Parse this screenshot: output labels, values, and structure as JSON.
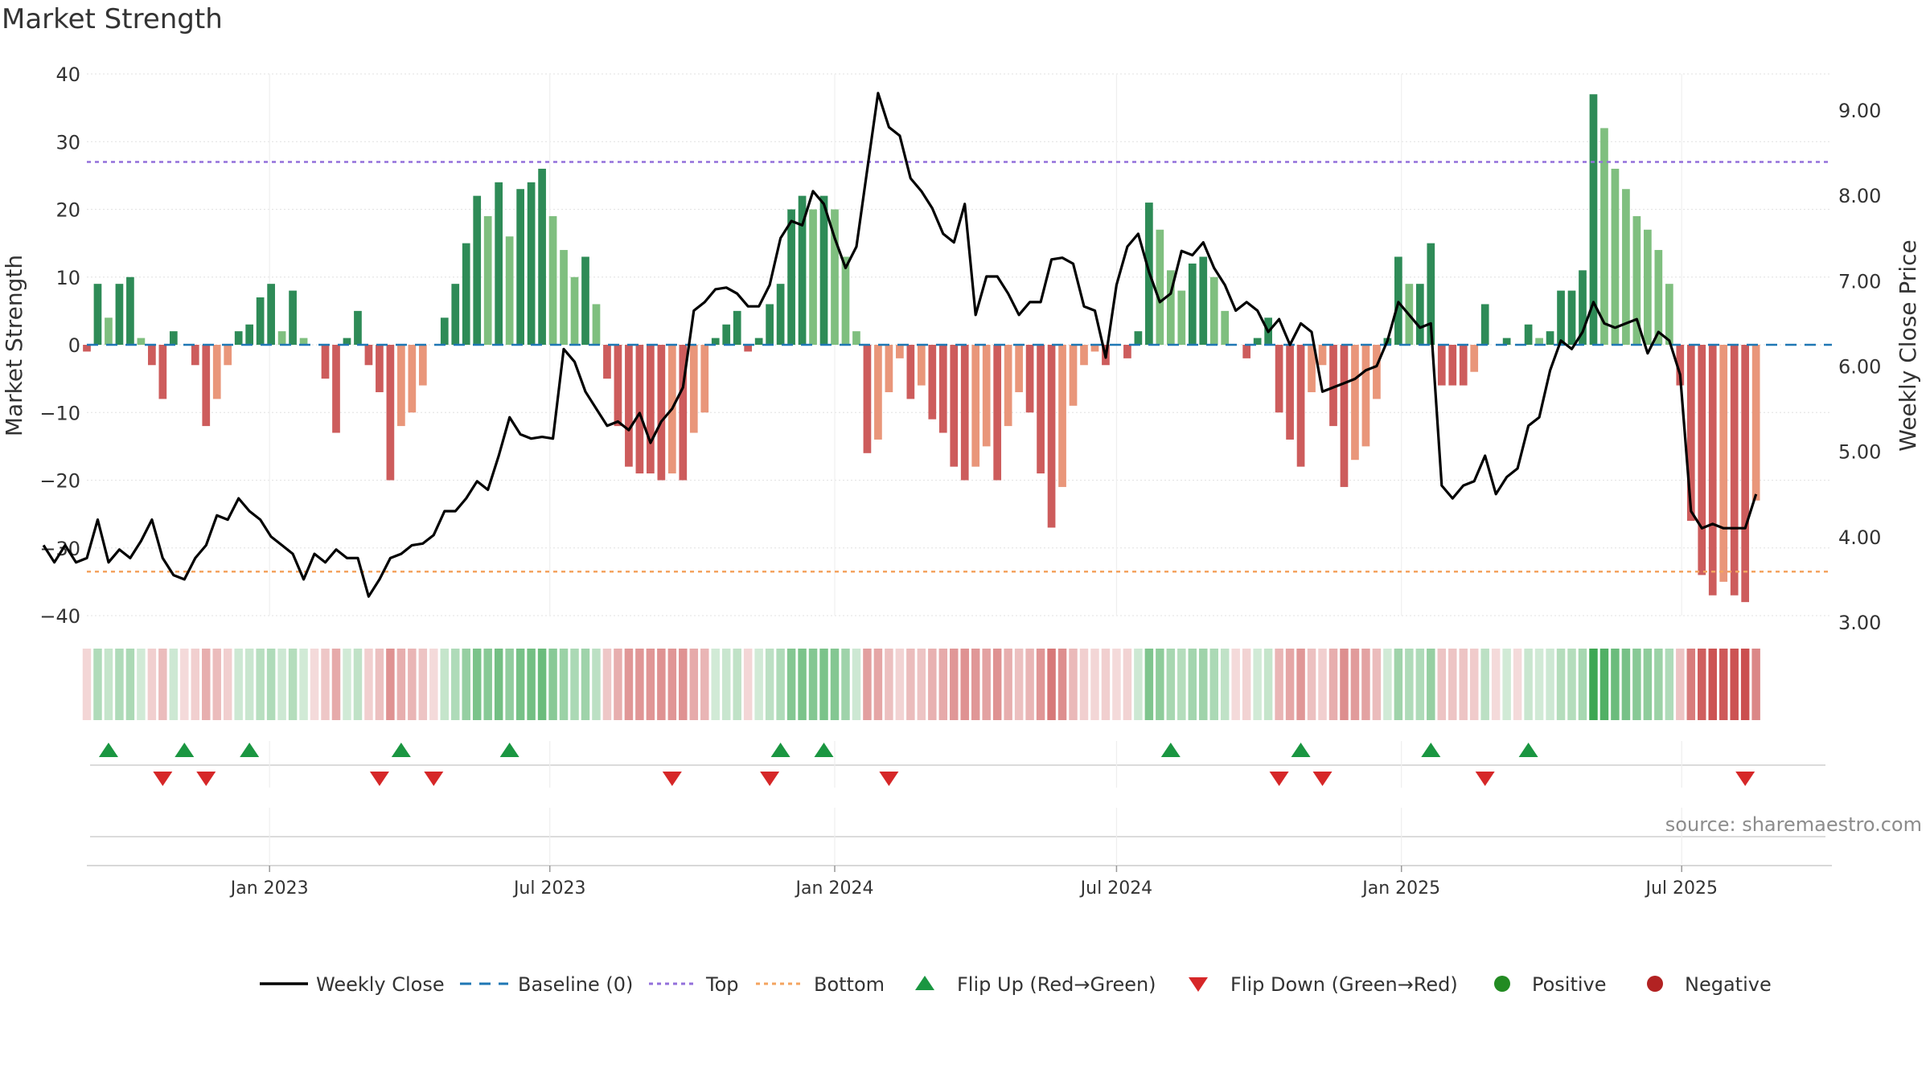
{
  "title": "Market Strength",
  "source": "source: sharemaestro.com",
  "colors": {
    "pos_dark": "#2e8b57",
    "pos_light": "#7fbf7f",
    "neg_dark": "#cd5c5c",
    "neg_light": "#e9967a",
    "flip_up": "#1a9641",
    "flip_down": "#d62728",
    "top_line": "#9370db",
    "bottom_line": "#f4a460",
    "baseline": "#1f77b4",
    "close": "#000000",
    "positive_dot": "#228b22",
    "negative_dot": "#b22222"
  },
  "chart_data": {
    "type": "bar",
    "title": "Market Strength",
    "ylabel": "Market Strength",
    "y2label": "Weekly Close Price",
    "ylim": [
      -40,
      40
    ],
    "y2lim": [
      3.0,
      9.5
    ],
    "yticks": [
      "40",
      "30",
      "20",
      "10",
      "0",
      "−10",
      "−20",
      "−30",
      "−40"
    ],
    "y2ticks": [
      "9.00",
      "8.00",
      "7.00",
      "6.00",
      "5.00",
      "4.00",
      "3.00"
    ],
    "x_start": "2022-09-05",
    "x_end": "2025-10-06",
    "x_ticks": [
      {
        "date": "2023-01-01",
        "label": "Jan 2023"
      },
      {
        "date": "2023-07-01",
        "label": "Jul 2023"
      },
      {
        "date": "2024-01-01",
        "label": "Jan 2024"
      },
      {
        "date": "2024-07-01",
        "label": "Jul 2024"
      },
      {
        "date": "2025-01-01",
        "label": "Jan 2025"
      },
      {
        "date": "2025-07-01",
        "label": "Jul 2025"
      }
    ],
    "top_level": 27,
    "bottom_level": -33.5,
    "strength": [
      -1,
      9,
      4,
      9,
      10,
      1,
      -3,
      -8,
      2,
      0,
      -3,
      -12,
      -8,
      -3,
      2,
      3,
      7,
      9,
      2,
      8,
      1,
      0,
      -5,
      -13,
      1,
      5,
      -3,
      -7,
      -20,
      -12,
      -10,
      -6,
      0,
      4,
      9,
      15,
      22,
      19,
      24,
      16,
      23,
      24,
      26,
      19,
      14,
      10,
      13,
      6,
      -5,
      -12,
      -18,
      -19,
      -19,
      -20,
      -19,
      -20,
      -13,
      -10,
      1,
      3,
      5,
      -1,
      1,
      6,
      9,
      20,
      22,
      20,
      22,
      20,
      13,
      2,
      -16,
      -14,
      -7,
      -2,
      -8,
      -6,
      -11,
      -13,
      -18,
      -20,
      -18,
      -15,
      -20,
      -12,
      -7,
      -10,
      -19,
      -27,
      -21,
      -9,
      -3,
      -1,
      -3,
      0,
      -2,
      2,
      21,
      17,
      11,
      8,
      12,
      13,
      10,
      5,
      0,
      -2,
      1,
      4,
      -10,
      -14,
      -18,
      -7,
      -3,
      -12,
      -21,
      -17,
      -15,
      -8,
      1,
      13,
      9,
      9,
      15,
      -6,
      -6,
      -6,
      -4,
      6,
      0,
      1,
      0,
      3,
      1,
      2,
      8,
      8,
      11,
      37,
      32,
      26,
      23,
      19,
      17,
      14,
      9,
      -6,
      -26,
      -34,
      -37,
      -35,
      -37,
      -38,
      -23
    ],
    "weekly_close": [
      3.9,
      3.7,
      3.9,
      3.7,
      3.75,
      4.2,
      3.7,
      3.85,
      3.75,
      3.95,
      4.2,
      3.75,
      3.55,
      3.5,
      3.75,
      3.9,
      4.25,
      4.2,
      4.45,
      4.3,
      4.2,
      4.0,
      3.9,
      3.8,
      3.5,
      3.8,
      3.7,
      3.85,
      3.75,
      3.75,
      3.3,
      3.5,
      3.75,
      3.8,
      3.9,
      3.92,
      4.02,
      4.3,
      4.3,
      4.45,
      4.65,
      4.55,
      4.95,
      5.4,
      5.2,
      5.15,
      5.17,
      5.15,
      6.2,
      6.05,
      5.7,
      5.5,
      5.3,
      5.35,
      5.25,
      5.45,
      5.1,
      5.35,
      5.5,
      5.75,
      6.65,
      6.75,
      6.9,
      6.92,
      6.85,
      6.7,
      6.7,
      6.95,
      7.5,
      7.7,
      7.65,
      8.05,
      7.9,
      7.5,
      7.15,
      7.4,
      8.3,
      9.2,
      8.8,
      8.7,
      8.2,
      8.05,
      7.85,
      7.55,
      7.45,
      7.9,
      6.6,
      7.05,
      7.05,
      6.85,
      6.6,
      6.75,
      6.75,
      7.25,
      7.27,
      7.2,
      6.7,
      6.65,
      6.1,
      6.95,
      7.4,
      7.55,
      7.1,
      6.75,
      6.85,
      7.35,
      7.3,
      7.45,
      7.15,
      6.95,
      6.65,
      6.75,
      6.65,
      6.4,
      6.55,
      6.25,
      6.5,
      6.4,
      5.7,
      5.75,
      5.8,
      5.85,
      5.95,
      6.0,
      6.3,
      6.75,
      6.6,
      6.45,
      6.5,
      4.6,
      4.45,
      4.6,
      4.65,
      4.95,
      4.5,
      4.7,
      4.8,
      5.3,
      5.4,
      5.95,
      6.3,
      6.2,
      6.4,
      6.75,
      6.5,
      6.45,
      6.5,
      6.55,
      6.15,
      6.4,
      6.3,
      5.9,
      4.3,
      4.1,
      4.15,
      4.1,
      4.1,
      4.1,
      4.5
    ],
    "flip_up_dates": [
      "2022-09-19",
      "2022-11-07",
      "2022-12-19",
      "2023-03-27",
      "2023-06-05",
      "2023-11-27",
      "2023-12-25",
      "2024-08-05",
      "2024-10-28",
      "2025-01-20",
      "2025-03-24"
    ],
    "flip_down_dates": [
      "2022-10-24",
      "2022-11-21",
      "2023-03-13",
      "2023-04-17",
      "2023-09-18",
      "2023-11-20",
      "2024-02-05",
      "2024-10-14",
      "2024-11-11",
      "2025-02-24",
      "2025-08-11"
    ]
  },
  "legend": {
    "weekly_close": "Weekly Close",
    "baseline": "Baseline (0)",
    "top": "Top",
    "bottom": "Bottom",
    "flip_up": "Flip Up (Red→Green)",
    "flip_down": "Flip Down (Green→Red)",
    "positive": "Positive",
    "negative": "Negative"
  }
}
